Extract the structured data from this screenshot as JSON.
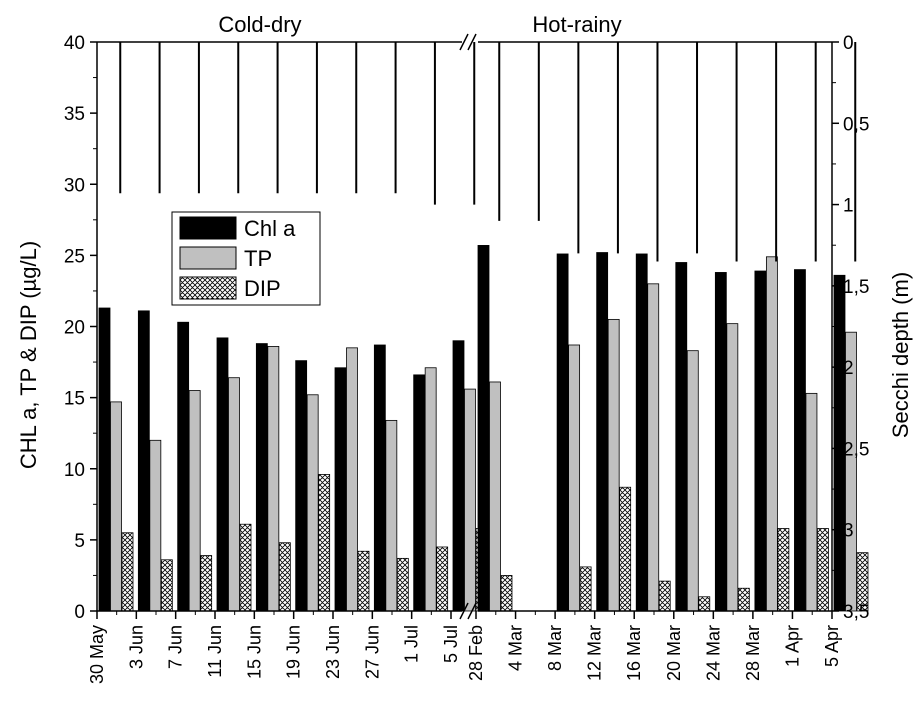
{
  "chart_data": {
    "type": "bar",
    "panels": [
      {
        "title": "Cold-dry",
        "categories": [
          "30 May",
          "3 Jun",
          "7 Jun",
          "11 Jun",
          "15 Jun",
          "19 Jun",
          "23 Jun",
          "27 Jun",
          "1 Jul",
          "5 Jul"
        ],
        "series": [
          {
            "name": "Chl a",
            "values": [
              21.3,
              21.1,
              20.3,
              19.2,
              18.8,
              17.6,
              17.1,
              18.7,
              16.6,
              19.0
            ]
          },
          {
            "name": "TP",
            "values": [
              14.7,
              12.0,
              15.5,
              16.4,
              18.6,
              15.2,
              18.5,
              13.4,
              17.1,
              15.6
            ]
          },
          {
            "name": "DIP",
            "values": [
              5.5,
              3.6,
              3.9,
              6.1,
              4.8,
              9.6,
              4.2,
              3.7,
              4.5,
              5.8
            ]
          }
        ],
        "secchi": [
          0.93,
          0.93,
          0.93,
          0.93,
          0.93,
          0.93,
          0.93,
          0.93,
          1.0,
          1.0
        ]
      },
      {
        "title": "Hot-rainy",
        "categories": [
          "28 Feb",
          "4 Mar",
          "8 Mar",
          "12 Mar",
          "16 Mar",
          "20 Mar",
          "24 Mar",
          "28 Mar",
          "1 Apr",
          "5 Apr"
        ],
        "series": [
          {
            "name": "Chl a",
            "values": [
              25.7,
              null,
              25.1,
              25.2,
              25.1,
              24.5,
              23.8,
              23.9,
              24.0,
              23.6
            ]
          },
          {
            "name": "TP",
            "values": [
              16.1,
              null,
              18.7,
              20.5,
              23.0,
              18.3,
              20.2,
              24.9,
              15.3,
              19.6
            ]
          },
          {
            "name": "DIP",
            "values": [
              2.5,
              null,
              3.1,
              8.7,
              2.1,
              1.0,
              1.6,
              5.8,
              5.8,
              4.1
            ]
          }
        ],
        "secchi": [
          1.1,
          1.1,
          1.3,
          1.3,
          1.35,
          1.3,
          1.35,
          1.35,
          1.35,
          1.35
        ]
      }
    ],
    "ylabel": "CHL a, TP & DIP (µg/L)",
    "ylim": [
      0,
      40
    ],
    "yticks": [
      "0",
      "5",
      "10",
      "15",
      "20",
      "25",
      "30",
      "35",
      "40"
    ],
    "y2label": "Secchi depth (m)",
    "y2lim": [
      0,
      3.5
    ],
    "y2ticks": [
      "0",
      "0,5",
      "1",
      "1,5",
      "2",
      "2,5",
      "3",
      "3,5"
    ],
    "legend": {
      "position": "left",
      "entries": [
        "Chl a",
        "TP",
        "DIP"
      ]
    },
    "colors": {
      "Chl a": "#000000",
      "TP": "#c0c0c0",
      "DIP": "hatch"
    }
  }
}
